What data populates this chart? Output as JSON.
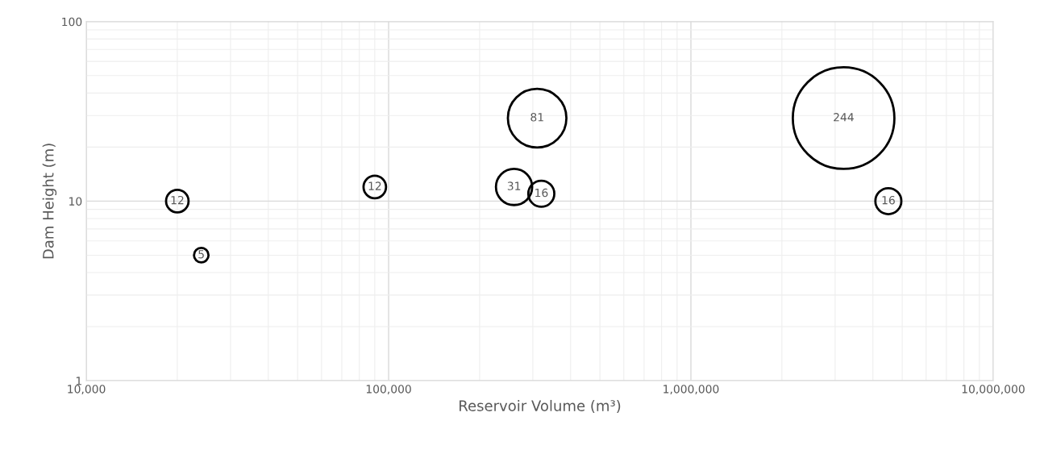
{
  "chart_data": {
    "type": "bubble",
    "xlabel": "Reservoir Volume (m³)",
    "ylabel": "Dam Height (m)",
    "x": [
      20000,
      24000,
      90000,
      260000,
      320000,
      310000,
      3200000,
      4500000
    ],
    "values": [
      10,
      5,
      12,
      12,
      11,
      29,
      29,
      10
    ],
    "sizes": [
      12,
      5,
      12,
      31,
      16,
      81,
      244,
      16
    ],
    "value_labels": [
      "12",
      "5",
      "12",
      "31",
      "16",
      "81",
      "244",
      "16"
    ],
    "color": "#000000",
    "log": "xy",
    "xlim": [
      10000,
      10000000
    ],
    "xticks": [
      {
        "value": 10000,
        "label": "10,000"
      },
      {
        "value": 100000,
        "label": "100,000"
      },
      {
        "value": 1000000,
        "label": "1,000,000"
      },
      {
        "value": 10000000,
        "label": "10,000,000"
      }
    ],
    "ylim": [
      1,
      100
    ],
    "yticks": [
      1,
      10,
      100
    ],
    "grid": true
  }
}
